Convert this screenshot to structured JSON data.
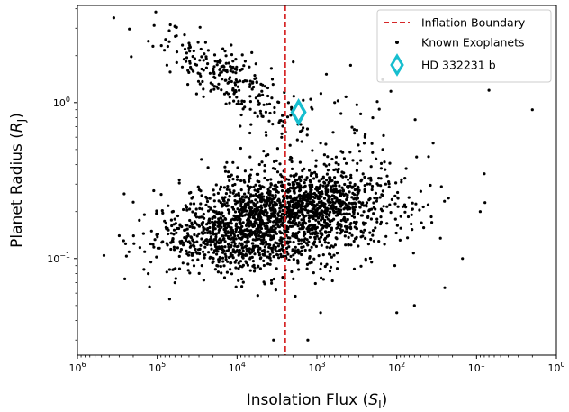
{
  "chart_data": {
    "type": "scatter",
    "title": "",
    "xlabel": "Insolation Flux ($S_\\mathrm{I}$)",
    "xlabel_main": "Insolation Flux (",
    "xlabel_sym": "S",
    "xlabel_sub": "I",
    "xlabel_close": ")",
    "ylabel": "Planet Radius ($R_\\mathrm{J}$)",
    "ylabel_main": "Planet Radius (",
    "ylabel_sym": "R",
    "ylabel_sub": "J",
    "ylabel_close": ")",
    "xscale": "log",
    "yscale": "log",
    "x_inverted": true,
    "xlim": [
      1000000,
      1
    ],
    "ylim": [
      0.024,
      4.2
    ],
    "grid": false,
    "legend_position": "top-right",
    "x_ticks": [
      {
        "value": 1000000,
        "base": "10",
        "exp": "6"
      },
      {
        "value": 100000,
        "base": "10",
        "exp": "5"
      },
      {
        "value": 10000,
        "base": "10",
        "exp": "4"
      },
      {
        "value": 1000,
        "base": "10",
        "exp": "3"
      },
      {
        "value": 100,
        "base": "10",
        "exp": "2"
      },
      {
        "value": 10,
        "base": "10",
        "exp": "1"
      },
      {
        "value": 1,
        "base": "10",
        "exp": "0"
      }
    ],
    "y_ticks": [
      {
        "value": 1,
        "base": "10",
        "exp": "0"
      },
      {
        "value": 0.1,
        "base": "10",
        "exp": "−1"
      }
    ],
    "series": [
      {
        "name": "Inflation Boundary",
        "kind": "vline",
        "x": 2500,
        "color": "#d62728",
        "dashed": true
      },
      {
        "name": "Known Exoplanets",
        "kind": "scatter",
        "color": "#000000",
        "n_points": 2500,
        "clusters": [
          {
            "x_center": 3000,
            "y_center": 1.4,
            "weight": 0.1
          },
          {
            "x_center": 2000,
            "y_center": 0.21,
            "weight": 0.45
          },
          {
            "x_center": 9000,
            "y_center": 0.14,
            "weight": 0.45
          }
        ],
        "points": [
          [
            350000,
            3.5
          ],
          [
            3500,
            0.03
          ],
          [
            1300,
            0.03
          ],
          [
            2,
            0.9
          ],
          [
            7,
            1.2
          ],
          [
            25,
            0.065
          ],
          [
            40,
            0.45
          ],
          [
            50,
            0.27
          ],
          [
            300000,
            0.14
          ],
          [
            200000,
            0.23
          ],
          [
            260000,
            0.26
          ],
          [
            900,
            0.045
          ],
          [
            100,
            0.045
          ],
          [
            60,
            0.05
          ],
          [
            15,
            0.1
          ],
          [
            35,
            0.55
          ],
          [
            9,
            0.2
          ],
          [
            8,
            0.35
          ],
          [
            600,
            1.0
          ],
          [
            900,
            0.55
          ],
          [
            700,
            0.4
          ],
          [
            200,
            0.8
          ],
          [
            150,
            0.5
          ],
          [
            250,
            0.6
          ],
          [
            500,
            0.85
          ],
          [
            1200,
            1.05
          ],
          [
            70000,
            0.085
          ],
          [
            70000,
            0.055
          ],
          [
            120000,
            0.095
          ],
          [
            130000,
            0.08
          ],
          [
            60000,
            0.07
          ]
        ]
      },
      {
        "name": "HD 332231 b",
        "kind": "marker",
        "x": 1700,
        "y": 0.867,
        "color": "#17becf",
        "marker": "thin-diamond"
      }
    ]
  }
}
